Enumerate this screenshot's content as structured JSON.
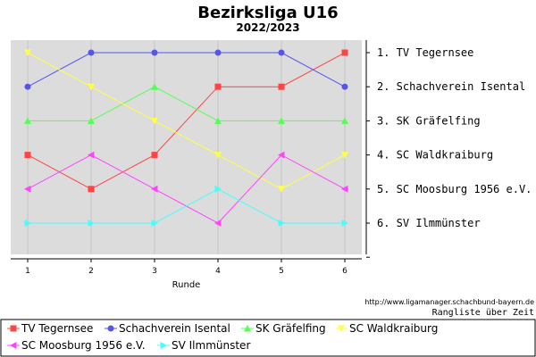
{
  "chart_data": {
    "type": "line",
    "title": "Bezirksliga U16",
    "subtitle": "2022/2023",
    "xlabel": "Runde",
    "ylabel": "",
    "x": [
      1,
      2,
      3,
      4,
      5,
      6
    ],
    "ylim": [
      0.5,
      7
    ],
    "y_inverted": true,
    "grid": true,
    "legend": "bottom",
    "series": [
      {
        "name": "TV Tegernsee",
        "color": "#ff4444",
        "marker": "square",
        "values": [
          4,
          5,
          4,
          2,
          2,
          1
        ]
      },
      {
        "name": "Schachverein Isental",
        "color": "#5555ee",
        "marker": "circle",
        "values": [
          2,
          1,
          1,
          1,
          1,
          2
        ]
      },
      {
        "name": "SK Gräfelfing",
        "color": "#55ff55",
        "marker": "triangle-up",
        "values": [
          3,
          3,
          2,
          3,
          3,
          3
        ]
      },
      {
        "name": "SC Waldkraiburg",
        "color": "#ffff44",
        "marker": "triangle-down",
        "values": [
          1,
          2,
          3,
          4,
          5,
          4
        ]
      },
      {
        "name": "SC Moosburg 1956 e.V.",
        "color": "#ff44ff",
        "marker": "triangle-left",
        "values": [
          5,
          4,
          5,
          6,
          4,
          5
        ]
      },
      {
        "name": "SV Ilmmünster",
        "color": "#44ffff",
        "marker": "triangle-right",
        "values": [
          6,
          6,
          6,
          5,
          6,
          6
        ]
      }
    ],
    "rank_labels": [
      "1. TV Tegernsee",
      "2. Schachverein Isental",
      "3. SK Gräfelfing",
      "4. SC Waldkraiburg",
      "5. SC Moosburg 1956 e.V.",
      "6. SV Ilmmünster"
    ],
    "source_url": "http://www.ligamanager.schachbund-bayern.de",
    "caption": "Rangliste über Zeit"
  }
}
